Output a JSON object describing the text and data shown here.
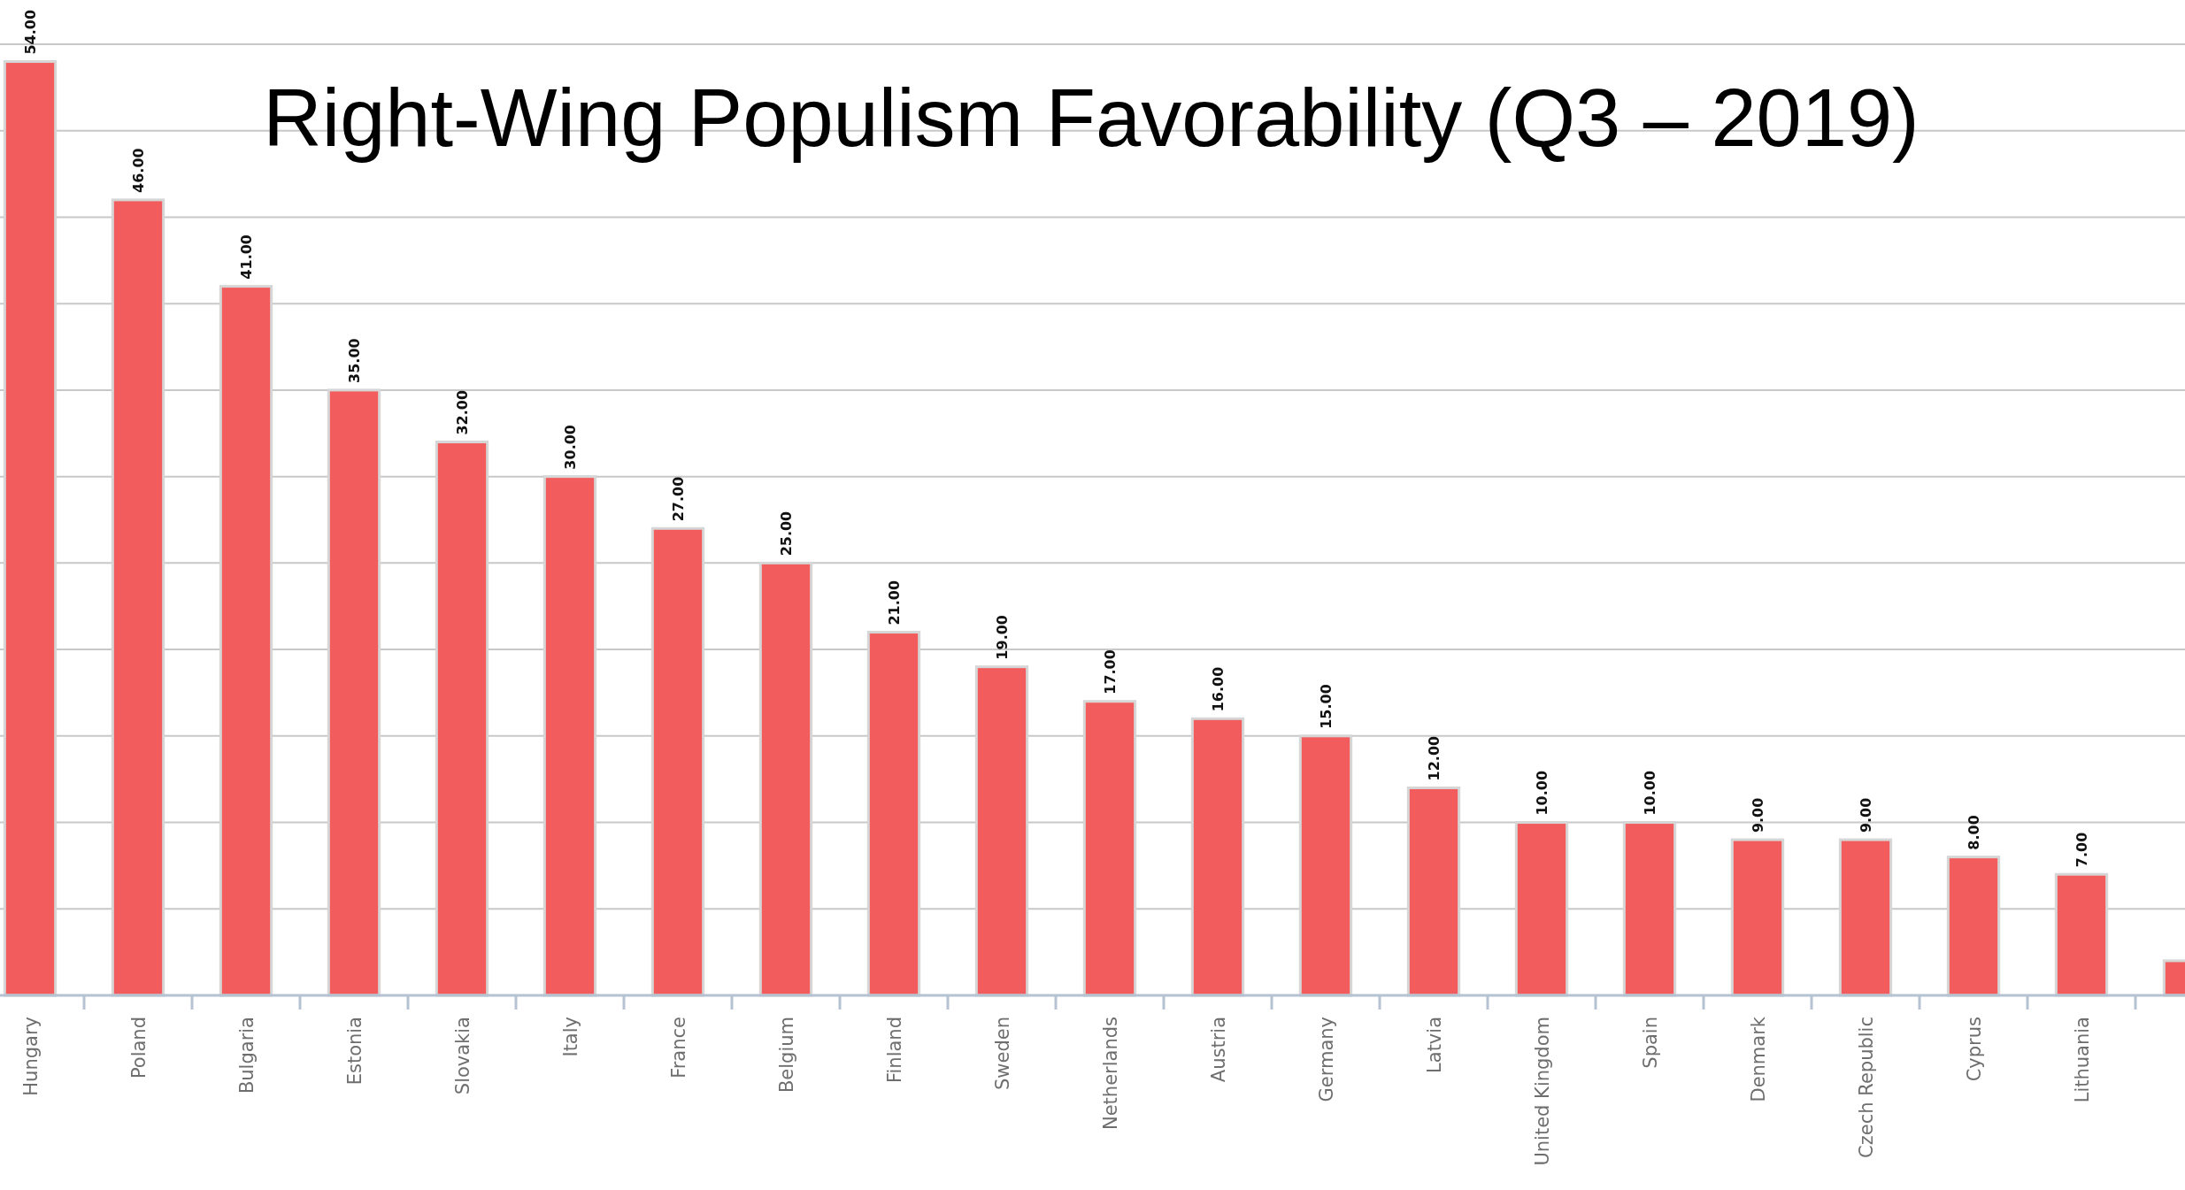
{
  "chart_data": {
    "type": "bar",
    "title": "Right-Wing Populism Favorability (Q3 – 2019)",
    "categories": [
      "Hungary",
      "Poland",
      "Bulgaria",
      "Estonia",
      "Slovakia",
      "Italy",
      "France",
      "Belgium",
      "Finland",
      "Sweden",
      "Netherlands",
      "Austria",
      "Germany",
      "Latvia",
      "United Kingdom",
      "Spain",
      "Denmark",
      "Czech Republic",
      "Cyprus",
      "Lithuania",
      null
    ],
    "values": [
      54,
      46,
      41,
      35,
      32,
      30,
      27,
      25,
      21,
      19,
      17,
      16,
      15,
      12,
      10,
      10,
      9,
      9,
      8,
      7,
      2
    ],
    "value_labels": [
      "54.00",
      "46.00",
      "41.00",
      "35.00",
      "32.00",
      "30.00",
      "27.00",
      "25.00",
      "21.00",
      "19.00",
      "17.00",
      "16.00",
      "15.00",
      "12.00",
      "10.00",
      "10.00",
      "9.00",
      "9.00",
      "8.00",
      "7.00",
      null
    ],
    "color": "#f25c5c",
    "yticks": [
      {
        "value": 0,
        "label": null
      },
      {
        "value": 5,
        "label": null
      },
      {
        "value": 10,
        "label": null
      },
      {
        "value": 15,
        "label": null
      },
      {
        "value": 20,
        "label": null
      },
      {
        "value": 25,
        "label": null
      },
      {
        "value": 30,
        "label": null
      },
      {
        "value": 35,
        "label": null
      },
      {
        "value": 40,
        "label": null
      },
      {
        "value": 45,
        "label": null
      },
      {
        "value": 50,
        "label": null
      },
      {
        "value": 55,
        "label": null
      }
    ],
    "grid": "y",
    "tick_labels": "x"
  }
}
